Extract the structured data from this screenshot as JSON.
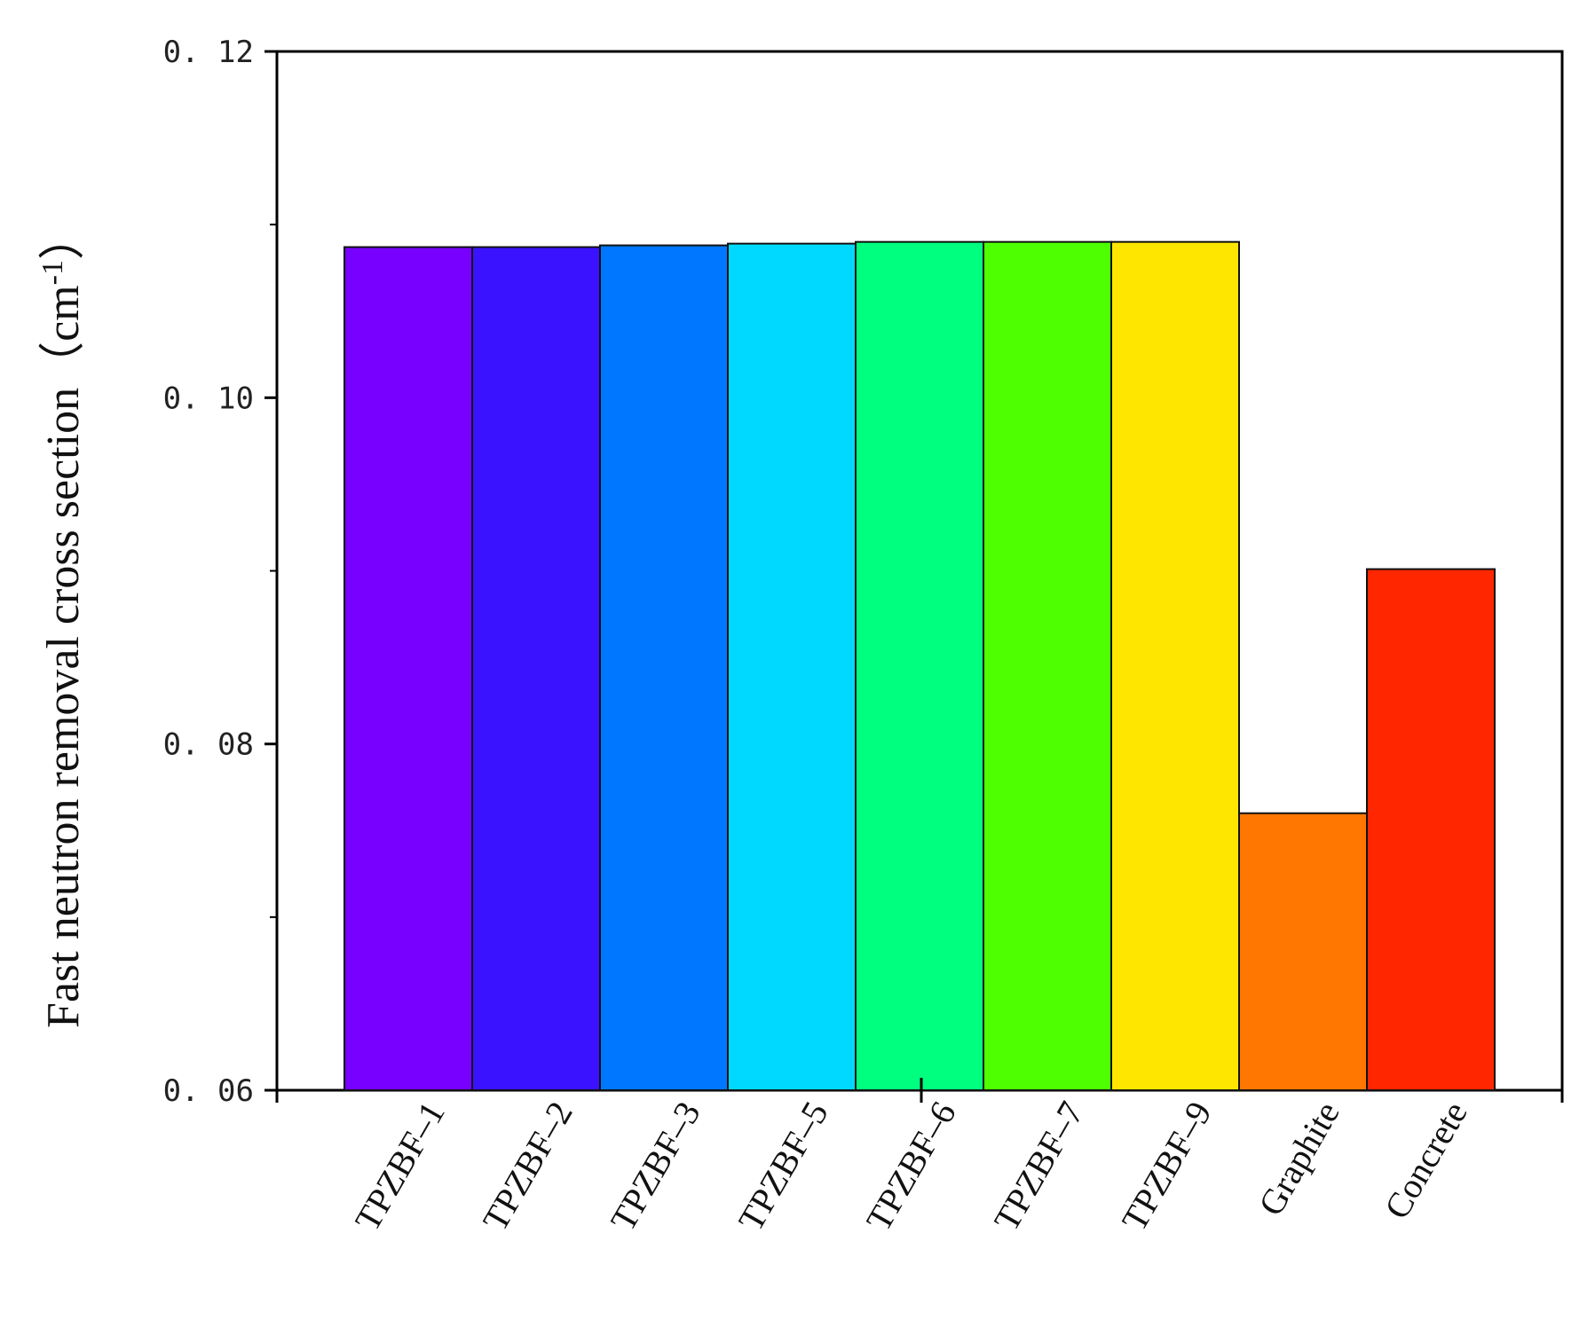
{
  "chart_data": {
    "type": "bar",
    "title": "",
    "xlabel": "",
    "ylabel": {
      "text": "Fast neutron removal cross section",
      "unit_open": "（cm",
      "unit_sup": "-1",
      "unit_close": "）"
    },
    "ylim": [
      0.06,
      0.12
    ],
    "yticks": [
      "0.06",
      "0.08",
      "0.10",
      "0.12"
    ],
    "yticks_display": [
      "0. 06",
      "0. 08",
      "0. 10",
      "0. 12"
    ],
    "minor_yticks": [
      0.07,
      0.09,
      0.11
    ],
    "grid": false,
    "legend": "none",
    "categories": [
      "TPZBF–1",
      "TPZBF–2",
      "TPZBF–3",
      "TPZBF–5",
      "TPZBF–6",
      "TPZBF–7",
      "TPZBF–9",
      "Graphite",
      "Concrete"
    ],
    "values": [
      0.1087,
      0.1087,
      0.1088,
      0.1089,
      0.109,
      0.109,
      0.109,
      0.076,
      0.0901
    ],
    "colors": [
      "#7700ff",
      "#3a12ff",
      "#0077ff",
      "#00d9ff",
      "#00ff7f",
      "#4dff00",
      "#ffe600",
      "#ff7700",
      "#ff2600"
    ]
  }
}
